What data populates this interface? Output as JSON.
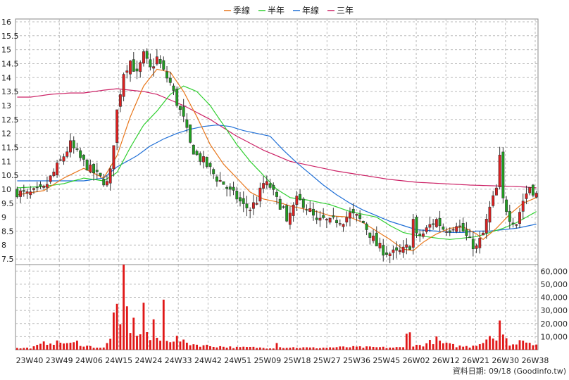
{
  "chart_data": {
    "type": "candlestick",
    "legend": [
      {
        "name": "季線",
        "color": "#e8761a"
      },
      {
        "name": "半年",
        "color": "#2fcf2f"
      },
      {
        "name": "年線",
        "color": "#1f6fd6"
      },
      {
        "name": "三年",
        "color": "#cc2266"
      }
    ],
    "price_axis": {
      "ylim": [
        7.3,
        16.1
      ],
      "ticks": [
        7.5,
        8,
        8.5,
        9,
        9.5,
        10,
        10.5,
        11,
        11.5,
        12,
        12.5,
        13,
        13.5,
        14,
        14.5,
        15,
        15.5,
        16
      ],
      "tick_labels": [
        "7.5",
        "8",
        "8.5",
        "9",
        "9.5",
        "10",
        "10.5",
        "11",
        "11.5",
        "12",
        "12.5",
        "13",
        "13.5",
        "14",
        "14.5",
        "15",
        "15.5",
        "16"
      ]
    },
    "volume_axis": {
      "ylim": [
        0,
        65000
      ],
      "ticks": [
        10000,
        20000,
        30000,
        40000,
        50000,
        60000
      ],
      "tick_labels": [
        "10,000",
        "20,000",
        "30,000",
        "40,000",
        "50,000",
        "60,000"
      ]
    },
    "x_labels": [
      "23W40",
      "23W49",
      "24W06",
      "24W15",
      "24W24",
      "24W33",
      "24W42",
      "24W51",
      "25W09",
      "25W18",
      "25W27",
      "25W36",
      "25W45",
      "26W02",
      "26W12",
      "26W21",
      "26W30",
      "26W38"
    ],
    "price_anchors": [
      [
        0,
        9.9
      ],
      [
        3,
        9.8
      ],
      [
        8,
        10.0
      ],
      [
        12,
        10.8
      ],
      [
        16,
        11.6
      ],
      [
        19,
        11.1
      ],
      [
        22,
        10.7
      ],
      [
        25,
        10.4
      ],
      [
        27,
        10.2
      ],
      [
        28,
        10.6
      ],
      [
        30,
        12.8
      ],
      [
        32,
        14.2
      ],
      [
        34,
        14.6
      ],
      [
        36,
        14.1
      ],
      [
        38,
        14.8
      ],
      [
        40,
        14.3
      ],
      [
        42,
        14.7
      ],
      [
        44,
        14.2
      ],
      [
        46,
        13.8
      ],
      [
        48,
        13.1
      ],
      [
        50,
        12.5
      ],
      [
        52,
        11.6
      ],
      [
        54,
        11.2
      ],
      [
        56,
        11.0
      ],
      [
        58,
        10.7
      ],
      [
        60,
        10.4
      ],
      [
        62,
        10.2
      ],
      [
        64,
        9.9
      ],
      [
        66,
        9.7
      ],
      [
        68,
        9.4
      ],
      [
        70,
        9.3
      ],
      [
        72,
        9.6
      ],
      [
        74,
        10.2
      ],
      [
        76,
        10.1
      ],
      [
        78,
        9.6
      ],
      [
        80,
        9.3
      ],
      [
        81,
        8.7
      ],
      [
        82,
        9.1
      ],
      [
        84,
        9.6
      ],
      [
        86,
        9.5
      ],
      [
        88,
        9.2
      ],
      [
        90,
        8.8
      ],
      [
        92,
        8.9
      ],
      [
        94,
        8.8
      ],
      [
        96,
        8.9
      ],
      [
        98,
        8.9
      ],
      [
        100,
        9.1
      ],
      [
        102,
        9.0
      ],
      [
        104,
        8.8
      ],
      [
        106,
        8.4
      ],
      [
        108,
        8.0
      ],
      [
        110,
        7.8
      ],
      [
        112,
        7.7
      ],
      [
        114,
        7.7
      ],
      [
        116,
        7.8
      ],
      [
        118,
        8.0
      ],
      [
        119,
        8.9
      ],
      [
        120,
        8.3
      ],
      [
        122,
        8.4
      ],
      [
        124,
        8.7
      ],
      [
        126,
        8.9
      ],
      [
        128,
        8.6
      ],
      [
        130,
        8.6
      ],
      [
        132,
        8.8
      ],
      [
        134,
        8.5
      ],
      [
        136,
        8.1
      ],
      [
        138,
        7.9
      ],
      [
        140,
        8.4
      ],
      [
        142,
        9.3
      ],
      [
        144,
        10.0
      ],
      [
        145,
        11.1
      ],
      [
        146,
        9.6
      ],
      [
        148,
        9.0
      ],
      [
        150,
        8.8
      ],
      [
        152,
        9.6
      ],
      [
        154,
        10.1
      ],
      [
        156,
        9.8
      ]
    ],
    "ma_quarter_anchors": [
      [
        0,
        9.8
      ],
      [
        8,
        9.95
      ],
      [
        14,
        10.4
      ],
      [
        20,
        10.75
      ],
      [
        26,
        10.4
      ],
      [
        30,
        11.2
      ],
      [
        34,
        12.6
      ],
      [
        38,
        13.7
      ],
      [
        42,
        14.3
      ],
      [
        46,
        14.2
      ],
      [
        50,
        13.5
      ],
      [
        54,
        12.6
      ],
      [
        58,
        11.6
      ],
      [
        62,
        10.9
      ],
      [
        66,
        10.4
      ],
      [
        70,
        9.9
      ],
      [
        74,
        9.65
      ],
      [
        78,
        9.55
      ],
      [
        82,
        9.4
      ],
      [
        86,
        9.3
      ],
      [
        90,
        9.2
      ],
      [
        94,
        9.05
      ],
      [
        100,
        9.0
      ],
      [
        104,
        8.8
      ],
      [
        108,
        8.5
      ],
      [
        112,
        8.2
      ],
      [
        116,
        7.85
      ],
      [
        119,
        7.8
      ],
      [
        122,
        8.1
      ],
      [
        126,
        8.4
      ],
      [
        130,
        8.6
      ],
      [
        134,
        8.65
      ],
      [
        138,
        8.4
      ],
      [
        140,
        8.2
      ],
      [
        144,
        8.6
      ],
      [
        148,
        9.1
      ],
      [
        152,
        9.5
      ],
      [
        156,
        9.7
      ]
    ],
    "ma_half_anchors": [
      [
        0,
        10.05
      ],
      [
        8,
        10.1
      ],
      [
        14,
        10.2
      ],
      [
        20,
        10.4
      ],
      [
        26,
        10.3
      ],
      [
        30,
        10.6
      ],
      [
        34,
        11.5
      ],
      [
        38,
        12.3
      ],
      [
        42,
        12.8
      ],
      [
        46,
        13.4
      ],
      [
        50,
        13.7
      ],
      [
        54,
        13.5
      ],
      [
        58,
        13.0
      ],
      [
        62,
        12.3
      ],
      [
        66,
        11.6
      ],
      [
        70,
        11.0
      ],
      [
        74,
        10.5
      ],
      [
        78,
        10.0
      ],
      [
        82,
        9.7
      ],
      [
        88,
        9.6
      ],
      [
        94,
        9.45
      ],
      [
        100,
        9.2
      ],
      [
        104,
        9.1
      ],
      [
        108,
        9.0
      ],
      [
        112,
        8.7
      ],
      [
        116,
        8.45
      ],
      [
        120,
        8.35
      ],
      [
        126,
        8.25
      ],
      [
        130,
        8.2
      ],
      [
        134,
        8.25
      ],
      [
        138,
        8.3
      ],
      [
        142,
        8.45
      ],
      [
        146,
        8.6
      ],
      [
        150,
        8.8
      ],
      [
        156,
        9.2
      ]
    ],
    "ma_year_anchors": [
      [
        0,
        10.3
      ],
      [
        12,
        10.3
      ],
      [
        20,
        10.3
      ],
      [
        26,
        10.4
      ],
      [
        30,
        10.8
      ],
      [
        36,
        11.2
      ],
      [
        40,
        11.55
      ],
      [
        44,
        11.8
      ],
      [
        48,
        12.0
      ],
      [
        52,
        12.15
      ],
      [
        56,
        12.25
      ],
      [
        60,
        12.3
      ],
      [
        64,
        12.25
      ],
      [
        68,
        12.1
      ],
      [
        72,
        12.0
      ],
      [
        76,
        11.9
      ],
      [
        80,
        11.4
      ],
      [
        84,
        10.95
      ],
      [
        88,
        10.55
      ],
      [
        92,
        10.15
      ],
      [
        96,
        9.8
      ],
      [
        100,
        9.5
      ],
      [
        104,
        9.25
      ],
      [
        108,
        9.05
      ],
      [
        112,
        8.85
      ],
      [
        116,
        8.7
      ],
      [
        120,
        8.55
      ],
      [
        126,
        8.5
      ],
      [
        130,
        8.45
      ],
      [
        134,
        8.45
      ],
      [
        138,
        8.5
      ],
      [
        142,
        8.5
      ],
      [
        146,
        8.55
      ],
      [
        150,
        8.6
      ],
      [
        156,
        8.75
      ]
    ],
    "ma_3year_anchors": [
      [
        0,
        13.3
      ],
      [
        4,
        13.3
      ],
      [
        10,
        13.4
      ],
      [
        16,
        13.45
      ],
      [
        20,
        13.45
      ],
      [
        26,
        13.55
      ],
      [
        30,
        13.6
      ],
      [
        34,
        13.55
      ],
      [
        38,
        13.5
      ],
      [
        42,
        13.4
      ],
      [
        46,
        13.2
      ],
      [
        50,
        13.0
      ],
      [
        54,
        12.75
      ],
      [
        58,
        12.5
      ],
      [
        62,
        12.2
      ],
      [
        66,
        11.9
      ],
      [
        70,
        11.65
      ],
      [
        74,
        11.4
      ],
      [
        78,
        11.2
      ],
      [
        82,
        11.0
      ],
      [
        86,
        10.9
      ],
      [
        90,
        10.8
      ],
      [
        96,
        10.65
      ],
      [
        104,
        10.5
      ],
      [
        112,
        10.35
      ],
      [
        120,
        10.25
      ],
      [
        128,
        10.2
      ],
      [
        136,
        10.15
      ],
      [
        144,
        10.12
      ],
      [
        150,
        10.1
      ],
      [
        156,
        10.05
      ]
    ],
    "volume_anchors": [
      [
        0,
        1200
      ],
      [
        4,
        1500
      ],
      [
        6,
        3000
      ],
      [
        8,
        5000
      ],
      [
        10,
        6500
      ],
      [
        12,
        5500
      ],
      [
        14,
        6000
      ],
      [
        16,
        4500
      ],
      [
        18,
        6000
      ],
      [
        20,
        3500
      ],
      [
        22,
        2500
      ],
      [
        24,
        2000
      ],
      [
        26,
        1500
      ],
      [
        28,
        8000
      ],
      [
        29,
        40000
      ],
      [
        30,
        28000
      ],
      [
        31,
        15000
      ],
      [
        32,
        64000
      ],
      [
        33,
        30000
      ],
      [
        34,
        18000
      ],
      [
        35,
        20000
      ],
      [
        36,
        15000
      ],
      [
        37,
        14000
      ],
      [
        38,
        33000
      ],
      [
        39,
        15000
      ],
      [
        40,
        8000
      ],
      [
        41,
        18000
      ],
      [
        42,
        10000
      ],
      [
        43,
        7000
      ],
      [
        44,
        36000
      ],
      [
        45,
        10000
      ],
      [
        46,
        8000
      ],
      [
        48,
        9000
      ],
      [
        50,
        6000
      ],
      [
        54,
        4000
      ],
      [
        58,
        3000
      ],
      [
        62,
        2500
      ],
      [
        66,
        1800
      ],
      [
        70,
        2000
      ],
      [
        74,
        1500
      ],
      [
        77,
        1500
      ],
      [
        78,
        8000
      ],
      [
        79,
        2000
      ],
      [
        84,
        1800
      ],
      [
        90,
        1500
      ],
      [
        96,
        2000
      ],
      [
        100,
        2200
      ],
      [
        106,
        2000
      ],
      [
        112,
        1800
      ],
      [
        116,
        1800
      ],
      [
        118,
        22000
      ],
      [
        119,
        3000
      ],
      [
        122,
        4000
      ],
      [
        124,
        6000
      ],
      [
        126,
        8000
      ],
      [
        128,
        5000
      ],
      [
        132,
        3000
      ],
      [
        136,
        2500
      ],
      [
        138,
        4500
      ],
      [
        140,
        6000
      ],
      [
        141,
        9500
      ],
      [
        142,
        12000
      ],
      [
        143,
        14000
      ],
      [
        144,
        8000
      ],
      [
        145,
        25000
      ],
      [
        146,
        10000
      ],
      [
        148,
        5000
      ],
      [
        150,
        4000
      ],
      [
        152,
        10000
      ],
      [
        154,
        6000
      ],
      [
        156,
        5000
      ]
    ],
    "num_candles": 157,
    "ylabel": "",
    "xlabel": "",
    "title": ""
  },
  "footer": {
    "credit": "資料日期: 09/18 (Goodinfo.tw)"
  }
}
